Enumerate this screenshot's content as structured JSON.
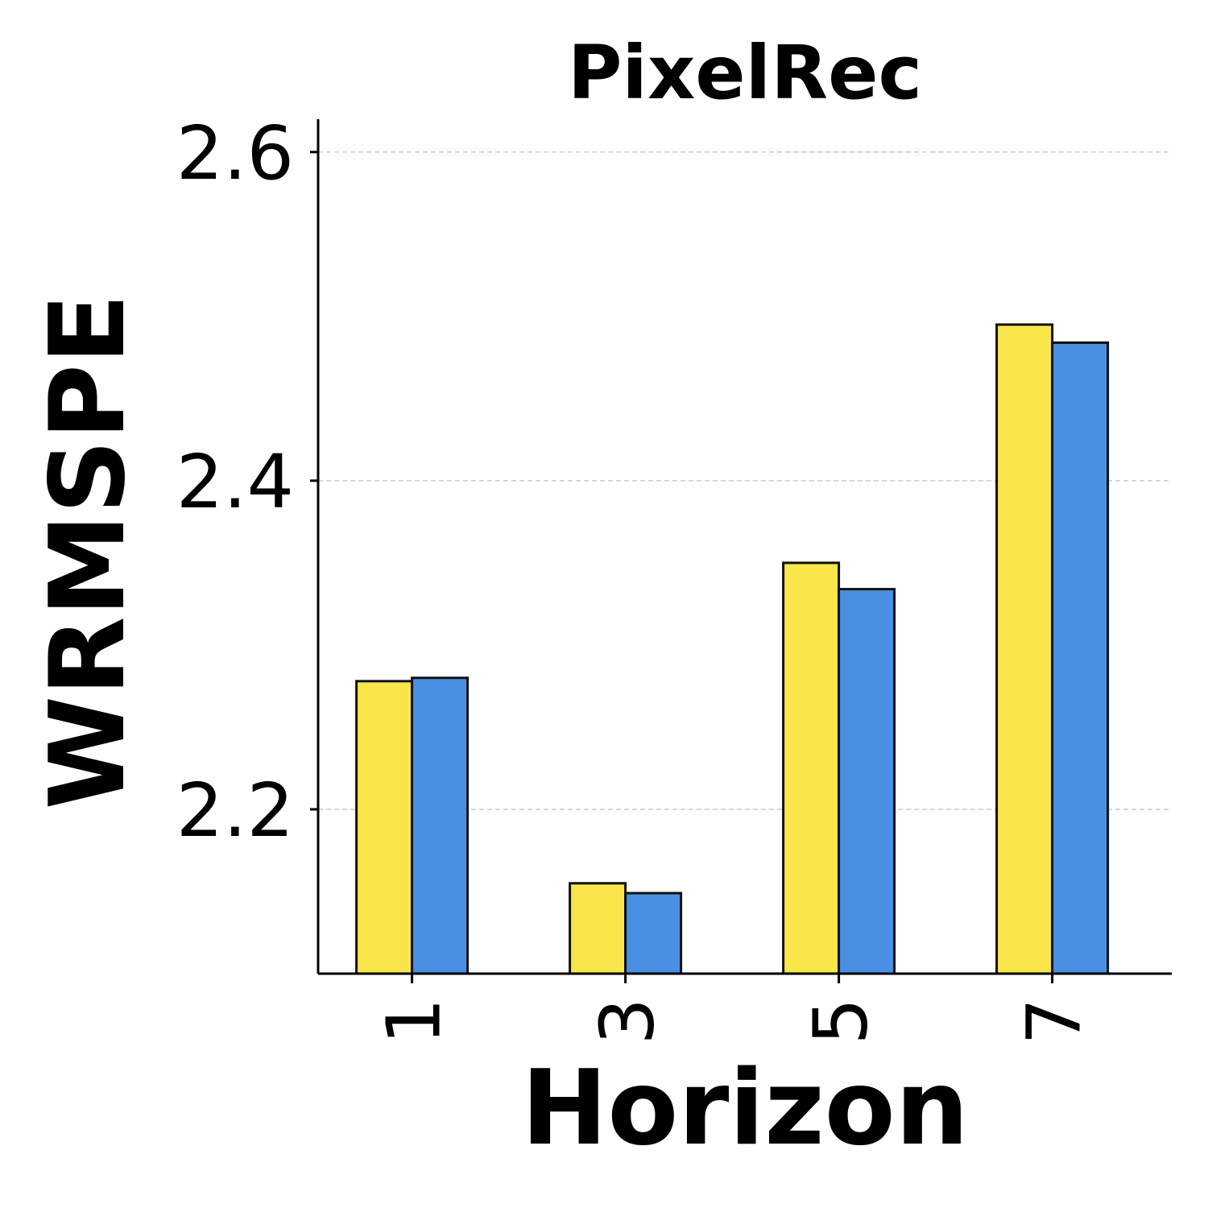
{
  "chart_data": {
    "type": "bar",
    "title": "PixelRec",
    "xlabel": "Horizon",
    "ylabel": "WRMSPE",
    "categories": [
      "1",
      "3",
      "5",
      "7"
    ],
    "yticks": [
      "2.2",
      "2.4",
      "2.6"
    ],
    "ylim": [
      2.1,
      2.62
    ],
    "grid": "y-dashed",
    "legend": "none",
    "series": [
      {
        "color": "#F9E64B",
        "values": [
          2.278,
          2.155,
          2.35,
          2.495
        ]
      },
      {
        "color": "#4A90E2",
        "values": [
          2.28,
          2.149,
          2.334,
          2.484
        ]
      }
    ]
  }
}
